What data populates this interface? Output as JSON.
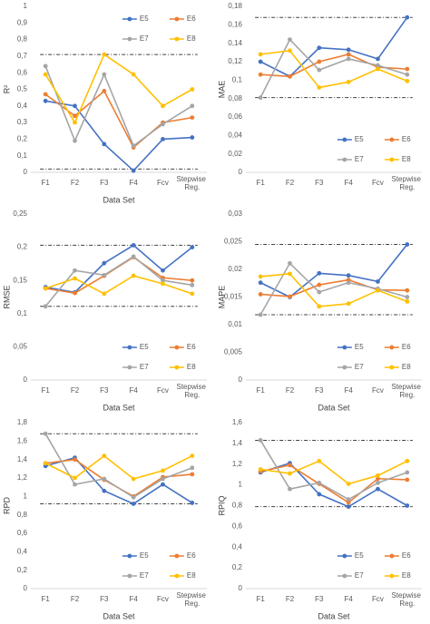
{
  "chart_data": [
    {
      "type": "line",
      "y_label": "R²",
      "x_label": "Data Set",
      "legend": "top",
      "categories": [
        "F1",
        "F2",
        "F3",
        "F4",
        "Fcv",
        "Stepwise Reg."
      ],
      "ylim": [
        0,
        1
      ],
      "yticks": [
        0,
        {
          "value": 0.1,
          "label": "0,1"
        },
        {
          "value": 0.2,
          "label": "0,2"
        },
        {
          "value": 0.3,
          "label": "0,3"
        },
        {
          "value": 0.4,
          "label": "0,4"
        },
        {
          "value": 0.5,
          "label": "0,5"
        },
        {
          "value": 0.6,
          "label": "0,6"
        },
        {
          "value": 0.7,
          "label": "0,7"
        },
        {
          "value": 0.8,
          "label": "0,8"
        },
        {
          "value": 0.9,
          "label": "0,9"
        },
        1
      ],
      "reference_lines": [
        0.71,
        0.02
      ],
      "series": [
        {
          "name": "E5",
          "color": "#4472c4",
          "values": [
            0.43,
            0.4,
            0.17,
            0.01,
            0.2,
            0.21
          ]
        },
        {
          "name": "E6",
          "color": "#ed7d31",
          "values": [
            0.47,
            0.34,
            0.49,
            0.15,
            0.3,
            0.33
          ]
        },
        {
          "name": "E7",
          "color": "#a5a5a5",
          "values": [
            0.64,
            0.19,
            0.59,
            0.16,
            0.29,
            0.4
          ]
        },
        {
          "name": "E8",
          "color": "#ffc000",
          "values": [
            0.59,
            0.3,
            0.71,
            0.59,
            0.4,
            0.5
          ]
        }
      ]
    },
    {
      "type": "line",
      "y_label": "MAE",
      "legend": "bottom",
      "categories": [
        "F1",
        "F2",
        "F3",
        "F4",
        "Fcv",
        "Stepwise Reg."
      ],
      "ylim": [
        0,
        0.18
      ],
      "yticks": [
        0,
        {
          "value": 0.02,
          "label": "0,02"
        },
        {
          "value": 0.04,
          "label": "0,04"
        },
        {
          "value": 0.06,
          "label": "0,06"
        },
        {
          "value": 0.08,
          "label": "0,08"
        },
        {
          "value": 0.1,
          "label": "0,1"
        },
        {
          "value": 0.12,
          "label": "0,12"
        },
        {
          "value": 0.14,
          "label": "0,14"
        },
        {
          "value": 0.16,
          "label": "0,16"
        },
        {
          "value": 0.18,
          "label": "0,18"
        }
      ],
      "reference_lines": [
        0.168,
        0.081
      ],
      "series": [
        {
          "name": "E5",
          "color": "#4472c4",
          "values": [
            0.12,
            0.104,
            0.135,
            0.133,
            0.123,
            0.168
          ]
        },
        {
          "name": "E6",
          "color": "#ed7d31",
          "values": [
            0.106,
            0.104,
            0.12,
            0.128,
            0.114,
            0.112
          ]
        },
        {
          "name": "E7",
          "color": "#a5a5a5",
          "values": [
            0.081,
            0.144,
            0.111,
            0.123,
            0.116,
            0.106
          ]
        },
        {
          "name": "E8",
          "color": "#ffc000",
          "values": [
            0.128,
            0.132,
            0.092,
            0.098,
            0.112,
            0.099
          ]
        }
      ]
    },
    {
      "type": "line",
      "y_label": "RMSE",
      "x_label": "Data Set",
      "legend": "bottom",
      "categories": [
        "F1",
        "F2",
        "F3",
        "F4",
        "Fcv",
        "Stepwise Reg."
      ],
      "ylim": [
        0,
        0.25
      ],
      "yticks": [
        0,
        {
          "value": 0.05,
          "label": "0,05"
        },
        {
          "value": 0.1,
          "label": "0,1"
        },
        {
          "value": 0.15,
          "label": "0,15"
        },
        {
          "value": 0.2,
          "label": "0,2"
        },
        {
          "value": 0.25,
          "label": "0,25"
        }
      ],
      "reference_lines": [
        0.203,
        0.111
      ],
      "series": [
        {
          "name": "E5",
          "color": "#4472c4",
          "values": [
            0.14,
            0.132,
            0.176,
            0.203,
            0.165,
            0.2
          ]
        },
        {
          "name": "E6",
          "color": "#ed7d31",
          "values": [
            0.138,
            0.131,
            0.157,
            0.185,
            0.154,
            0.15
          ]
        },
        {
          "name": "E7",
          "color": "#a5a5a5",
          "values": [
            0.111,
            0.165,
            0.158,
            0.186,
            0.15,
            0.143
          ]
        },
        {
          "name": "E8",
          "color": "#ffc000",
          "values": [
            0.138,
            0.153,
            0.13,
            0.157,
            0.145,
            0.13
          ]
        }
      ]
    },
    {
      "type": "line",
      "y_label": "MAPE",
      "x_label": "Data Set",
      "legend": "bottom",
      "categories": [
        "F1",
        "F2",
        "F3",
        "F4",
        "Fcv",
        "Stepwise Reg."
      ],
      "ylim": [
        0,
        0.03
      ],
      "yticks": [
        0,
        {
          "value": 0.005,
          "label": "0,005"
        },
        {
          "value": 0.01,
          "label": "0,01"
        },
        {
          "value": 0.015,
          "label": "0,015"
        },
        {
          "value": 0.02,
          "label": "0,02"
        },
        {
          "value": 0.025,
          "label": "0,025"
        },
        {
          "value": 0.03,
          "label": "0,03"
        }
      ],
      "reference_lines": [
        0.0245,
        0.0118
      ],
      "series": [
        {
          "name": "E5",
          "color": "#4472c4",
          "values": [
            0.0176,
            0.015,
            0.0193,
            0.0189,
            0.0178,
            0.0245
          ]
        },
        {
          "name": "E6",
          "color": "#ed7d31",
          "values": [
            0.0155,
            0.0151,
            0.0172,
            0.0181,
            0.0163,
            0.0162
          ]
        },
        {
          "name": "E7",
          "color": "#a5a5a5",
          "values": [
            0.0118,
            0.0211,
            0.0159,
            0.0176,
            0.0165,
            0.015
          ]
        },
        {
          "name": "E8",
          "color": "#ffc000",
          "values": [
            0.0187,
            0.0192,
            0.0133,
            0.0138,
            0.0162,
            0.0142
          ]
        }
      ]
    },
    {
      "type": "line",
      "y_label": "RPD",
      "x_label": "Data Set",
      "legend": "bottom",
      "categories": [
        "F1",
        "F2",
        "F3",
        "F4",
        "Fcv",
        "Stepwise Reg."
      ],
      "ylim": [
        0,
        1.8
      ],
      "yticks": [
        0,
        {
          "value": 0.2,
          "label": "0,2"
        },
        {
          "value": 0.4,
          "label": "0,4"
        },
        {
          "value": 0.6,
          "label": "0,6"
        },
        {
          "value": 0.8,
          "label": "0,8"
        },
        1,
        {
          "value": 1.2,
          "label": "1,2"
        },
        {
          "value": 1.4,
          "label": "1,4"
        },
        {
          "value": 1.6,
          "label": "1,6"
        },
        {
          "value": 1.8,
          "label": "1,8"
        }
      ],
      "reference_lines": [
        1.68,
        0.92
      ],
      "series": [
        {
          "name": "E5",
          "color": "#4472c4",
          "values": [
            1.33,
            1.42,
            1.06,
            0.92,
            1.13,
            0.93
          ]
        },
        {
          "name": "E6",
          "color": "#ed7d31",
          "values": [
            1.36,
            1.4,
            1.18,
            1.0,
            1.21,
            1.24
          ]
        },
        {
          "name": "E7",
          "color": "#a5a5a5",
          "values": [
            1.68,
            1.13,
            1.19,
            0.99,
            1.19,
            1.31
          ]
        },
        {
          "name": "E8",
          "color": "#ffc000",
          "values": [
            1.36,
            1.2,
            1.44,
            1.19,
            1.28,
            1.44
          ]
        }
      ]
    },
    {
      "type": "line",
      "y_label": "RPIQ",
      "x_label": "Data Set",
      "legend": "bottom",
      "categories": [
        "F1",
        "F2",
        "F3",
        "F4",
        "Fcv",
        "Stepwise Reg."
      ],
      "ylim": [
        0,
        1.6
      ],
      "yticks": [
        0,
        {
          "value": 0.2,
          "label": "0,2"
        },
        {
          "value": 0.4,
          "label": "0,4"
        },
        {
          "value": 0.6,
          "label": "0,6"
        },
        {
          "value": 0.8,
          "label": "0,8"
        },
        1,
        {
          "value": 1.2,
          "label": "1,2"
        },
        {
          "value": 1.4,
          "label": "1,4"
        },
        {
          "value": 1.6,
          "label": "1,6"
        }
      ],
      "reference_lines": [
        1.43,
        0.79
      ],
      "series": [
        {
          "name": "E5",
          "color": "#4472c4",
          "values": [
            1.12,
            1.21,
            0.91,
            0.79,
            0.96,
            0.8
          ]
        },
        {
          "name": "E6",
          "color": "#ed7d31",
          "values": [
            1.13,
            1.19,
            1.01,
            0.83,
            1.06,
            1.05
          ]
        },
        {
          "name": "E7",
          "color": "#a5a5a5",
          "values": [
            1.43,
            0.96,
            1.02,
            0.86,
            1.02,
            1.12
          ]
        },
        {
          "name": "E8",
          "color": "#ffc000",
          "values": [
            1.15,
            1.11,
            1.23,
            1.01,
            1.09,
            1.23
          ]
        }
      ]
    }
  ]
}
